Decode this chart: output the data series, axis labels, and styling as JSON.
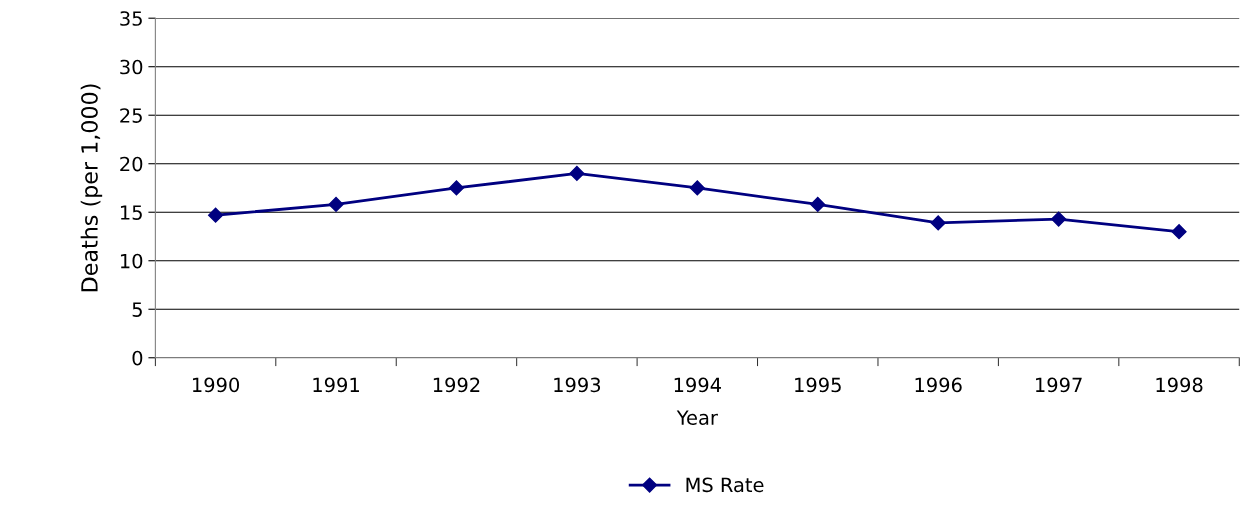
{
  "chart_data": {
    "type": "line",
    "xlabel": "Year",
    "ylabel": "Deaths (per 1,000)",
    "categories": [
      "1990",
      "1991",
      "1992",
      "1993",
      "1994",
      "1995",
      "1996",
      "1997",
      "1998"
    ],
    "series": [
      {
        "name": "MS Rate",
        "color": "#000080",
        "values": [
          14.7,
          15.8,
          17.5,
          19.0,
          17.5,
          15.8,
          13.9,
          14.3,
          13.0
        ]
      }
    ],
    "ylim": [
      0,
      35
    ],
    "yticks": [
      0,
      5,
      10,
      15,
      20,
      25,
      30,
      35
    ],
    "grid": "y",
    "legend": "bottom",
    "marker": "diamond",
    "line_style": "solid"
  }
}
